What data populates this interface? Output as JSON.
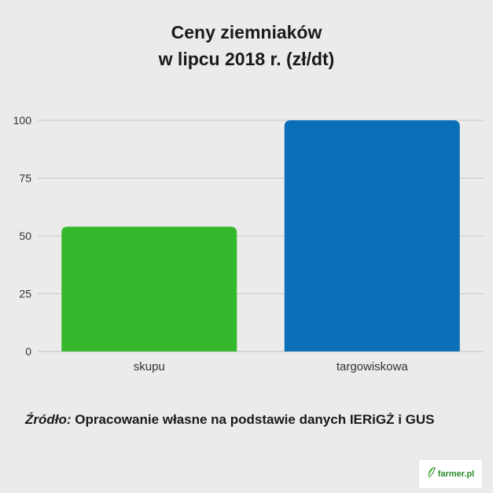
{
  "colors": {
    "background": "#ebebeb",
    "grid": "#c8c8c8",
    "axis_text": "#333333"
  },
  "chart_data": {
    "type": "bar",
    "title_line1": "Ceny ziemniaków",
    "title_line2": "w  lipcu 2018 r. (zł/dt)",
    "categories": [
      "skupu",
      "targowiskowa"
    ],
    "values": [
      54,
      100
    ],
    "bar_colors": [
      "#36b82d",
      "#0a6fb7"
    ],
    "yticks": [
      "0",
      "25",
      "50",
      "75",
      "100"
    ],
    "ylim": [
      0,
      100
    ],
    "grid": true,
    "legend": "none"
  },
  "footer": {
    "source_label": "Źródło:",
    "source_text": " Opracowanie własne na podstawie danych IERiGŻ  i GUS"
  },
  "logo": {
    "text": "farmer.pl",
    "icon": "leaf-icon"
  }
}
